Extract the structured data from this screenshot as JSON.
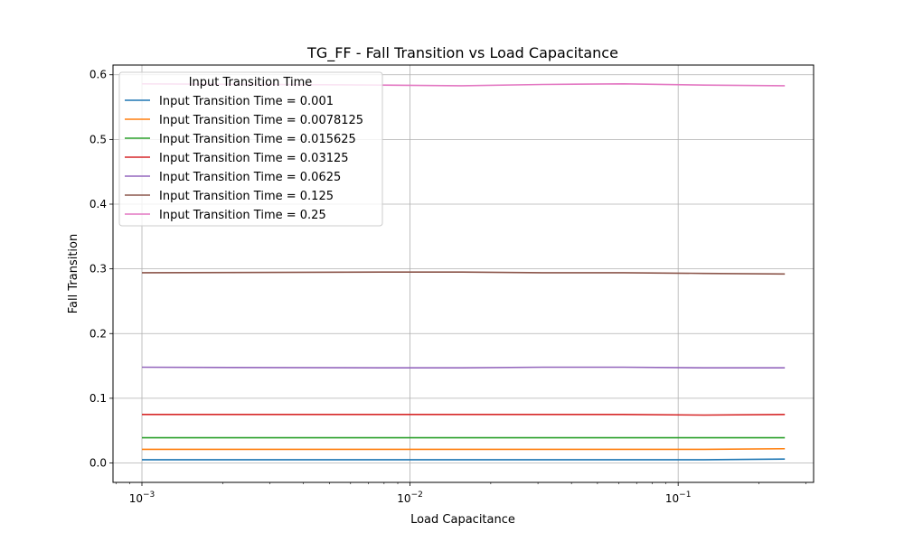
{
  "chart_data": {
    "type": "line",
    "title": "TG_FF - Fall Transition vs Load Capacitance",
    "xlabel": "Load Capacitance",
    "ylabel": "Fall Transition",
    "xscale": "log",
    "xlim": [
      0.00078,
      0.32
    ],
    "ylim": [
      -0.03,
      0.615
    ],
    "grid": true,
    "x": [
      0.001,
      0.0078125,
      0.015625,
      0.03125,
      0.0625,
      0.125,
      0.25
    ],
    "x_ticks": [
      {
        "value": 0.001,
        "base": "10",
        "exp": "−3"
      },
      {
        "value": 0.01,
        "base": "10",
        "exp": "−2"
      },
      {
        "value": 0.1,
        "base": "10",
        "exp": "−1"
      }
    ],
    "y_ticks": [
      {
        "value": 0.0,
        "label": "0.0"
      },
      {
        "value": 0.1,
        "label": "0.1"
      },
      {
        "value": 0.2,
        "label": "0.2"
      },
      {
        "value": 0.3,
        "label": "0.3"
      },
      {
        "value": 0.4,
        "label": "0.4"
      },
      {
        "value": 0.5,
        "label": "0.5"
      },
      {
        "value": 0.6,
        "label": "0.6"
      }
    ],
    "legend": {
      "title": "Input Transition Time",
      "placement": "top-left"
    },
    "series": [
      {
        "name": "Input Transition Time = 0.001",
        "color": "#1f77b4",
        "values": [
          0.005,
          0.005,
          0.005,
          0.005,
          0.005,
          0.005,
          0.006
        ]
      },
      {
        "name": "Input Transition Time = 0.0078125",
        "color": "#ff7f0e",
        "values": [
          0.021,
          0.021,
          0.021,
          0.021,
          0.021,
          0.021,
          0.022
        ]
      },
      {
        "name": "Input Transition Time = 0.015625",
        "color": "#2ca02c",
        "values": [
          0.039,
          0.039,
          0.039,
          0.039,
          0.039,
          0.039,
          0.039
        ]
      },
      {
        "name": "Input Transition Time = 0.03125",
        "color": "#d62728",
        "values": [
          0.075,
          0.075,
          0.075,
          0.075,
          0.075,
          0.074,
          0.075
        ]
      },
      {
        "name": "Input Transition Time = 0.0625",
        "color": "#9467bd",
        "values": [
          0.148,
          0.147,
          0.147,
          0.148,
          0.148,
          0.147,
          0.147
        ]
      },
      {
        "name": "Input Transition Time = 0.125",
        "color": "#8c564b",
        "values": [
          0.294,
          0.295,
          0.295,
          0.294,
          0.294,
          0.293,
          0.292
        ]
      },
      {
        "name": "Input Transition Time = 0.25",
        "color": "#e377c2",
        "values": [
          0.586,
          0.584,
          0.583,
          0.585,
          0.586,
          0.584,
          0.583
        ]
      }
    ]
  }
}
